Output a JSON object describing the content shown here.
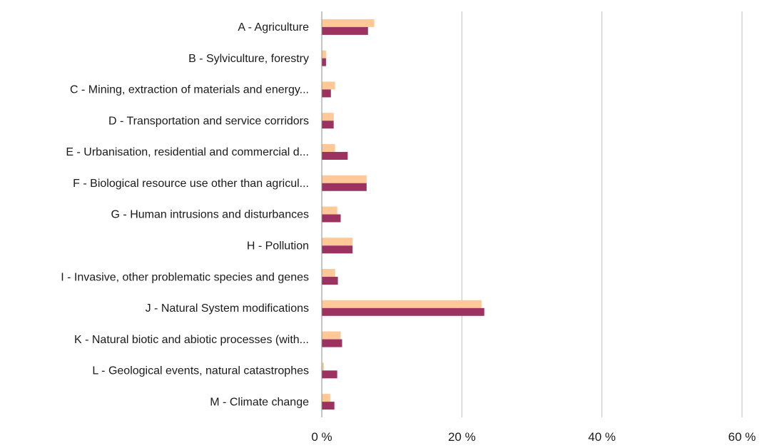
{
  "chart_data": {
    "type": "bar",
    "orientation": "horizontal",
    "categories": [
      "A - Agriculture",
      "B - Sylviculture, forestry",
      "C - Mining, extraction of materials and energy...",
      "D - Transportation and service corridors",
      "E - Urbanisation, residential and commercial d...",
      "F - Biological resource use other than agricul...",
      "G - Human intrusions and disturbances",
      "H - Pollution",
      "I - Invasive, other problematic species and genes",
      "J - Natural System modifications",
      "K - Natural biotic and abiotic processes (with...",
      "L - Geological events, natural catastrophes",
      "M - Climate change"
    ],
    "series": [
      {
        "values": [
          7.5,
          0.6,
          1.9,
          1.7,
          1.9,
          6.4,
          2.2,
          4.4,
          1.9,
          22.8,
          2.7,
          0.3,
          1.2
        ],
        "color": "#FFC896"
      },
      {
        "values": [
          6.6,
          0.6,
          1.3,
          1.7,
          3.7,
          6.4,
          2.7,
          4.4,
          2.3,
          23.2,
          2.9,
          2.2,
          1.8
        ],
        "color": "#9B3260"
      }
    ],
    "xlim": [
      0,
      60
    ],
    "ticks": [
      0,
      20,
      40,
      60
    ],
    "tick_labels": [
      "0 %",
      "20 %",
      "40 %",
      "60 %"
    ],
    "grid": true,
    "legend": "none"
  }
}
